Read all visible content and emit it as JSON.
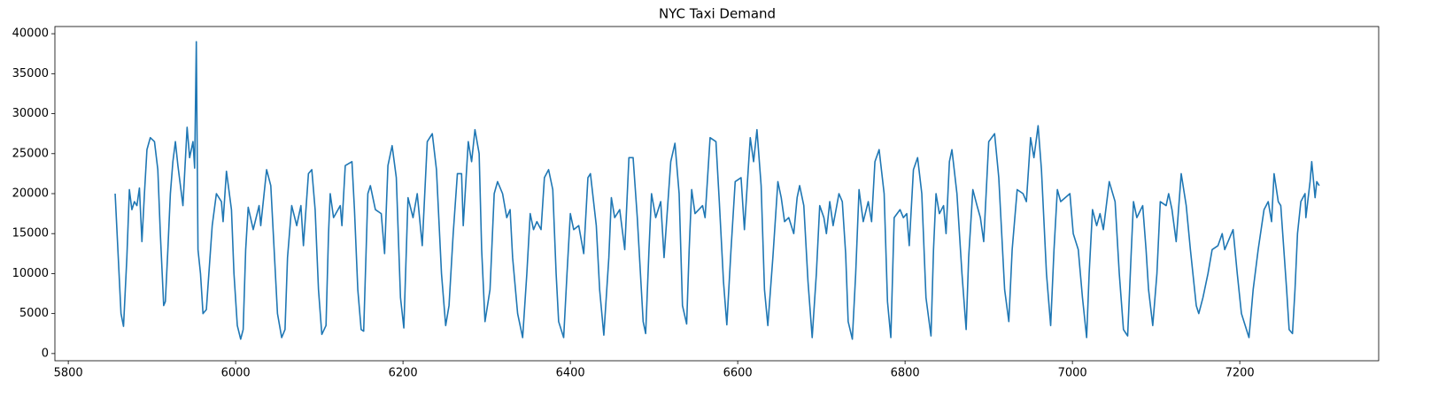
{
  "chart_data": {
    "type": "line",
    "title": "NYC Taxi Demand",
    "color": "#1f77b4",
    "xlim": [
      5784,
      7366
    ],
    "ylim": [
      -900,
      40900
    ],
    "xticks": [
      5800,
      6000,
      6200,
      6400,
      6600,
      6800,
      7000,
      7200
    ],
    "yticks": [
      0,
      5000,
      10000,
      15000,
      20000,
      25000,
      30000,
      35000,
      40000
    ],
    "grid": false,
    "x": [
      5856,
      5863,
      5866,
      5870,
      5873,
      5876,
      5879,
      5882,
      5885,
      5888,
      5891,
      5894,
      5898,
      5903,
      5907,
      5910,
      5914,
      5916,
      5919,
      5922,
      5925,
      5928,
      5931,
      5937,
      5942,
      5945,
      5949,
      5951,
      5953,
      5955,
      5958,
      5961,
      5965,
      5972,
      5977,
      5983,
      5985,
      5989,
      5995,
      5998,
      6002,
      6006,
      6009,
      6012,
      6015,
      6021,
      6028,
      6030,
      6037,
      6042,
      6045,
      6050,
      6055,
      6059,
      6062,
      6067,
      6073,
      6078,
      6081,
      6087,
      6091,
      6095,
      6099,
      6103,
      6108,
      6111,
      6113,
      6117,
      6125,
      6127,
      6131,
      6139,
      6142,
      6146,
      6150,
      6153,
      6158,
      6161,
      6167,
      6174,
      6178,
      6182,
      6186,
      6187,
      6192,
      6197,
      6201,
      6206,
      6212,
      6217,
      6223,
      6229,
      6235,
      6240,
      6246,
      6251,
      6255,
      6260,
      6265,
      6270,
      6272,
      6278,
      6282,
      6286,
      6291,
      6294,
      6298,
      6304,
      6309,
      6313,
      6319,
      6324,
      6328,
      6331,
      6337,
      6343,
      6348,
      6352,
      6356,
      6360,
      6365,
      6369,
      6374,
      6379,
      6383,
      6386,
      6392,
      6396,
      6400,
      6404,
      6410,
      6416,
      6421,
      6424,
      6431,
      6435,
      6440,
      6446,
      6449,
      6453,
      6459,
      6465,
      6470,
      6475,
      6480,
      6487,
      6490,
      6494,
      6497,
      6502,
      6508,
      6512,
      6520,
      6525,
      6530,
      6534,
      6539,
      6542,
      6545,
      6549,
      6558,
      6561,
      6567,
      6574,
      6578,
      6583,
      6587,
      6592,
      6597,
      6604,
      6608,
      6615,
      6619,
      6623,
      6628,
      6632,
      6636,
      6642,
      6648,
      6652,
      6656,
      6661,
      6667,
      6671,
      6674,
      6679,
      6684,
      6689,
      6694,
      6698,
      6703,
      6706,
      6710,
      6714,
      6721,
      6725,
      6729,
      6732,
      6737,
      6741,
      6745,
      6750,
      6756,
      6760,
      6764,
      6769,
      6775,
      6779,
      6783,
      6787,
      6794,
      6798,
      6802,
      6805,
      6810,
      6815,
      6820,
      6825,
      6831,
      6834,
      6837,
      6841,
      6846,
      6849,
      6853,
      6856,
      6862,
      6868,
      6873,
      6876,
      6881,
      6886,
      6890,
      6894,
      6900,
      6907,
      6912,
      6919,
      6924,
      6928,
      6934,
      6941,
      6945,
      6950,
      6954,
      6959,
      6963,
      6969,
      6974,
      6978,
      6982,
      6986,
      6997,
      7001,
      7007,
      7012,
      7017,
      7020,
      7024,
      7029,
      7033,
      7037,
      7044,
      7051,
      7056,
      7061,
      7066,
      7070,
      7073,
      7077,
      7084,
      7088,
      7091,
      7096,
      7101,
      7105,
      7112,
      7115,
      7119,
      7124,
      7130,
      7136,
      7141,
      7148,
      7151,
      7156,
      7162,
      7167,
      7174,
      7179,
      7182,
      7192,
      7197,
      7202,
      7211,
      7216,
      7222,
      7229,
      7234,
      7238,
      7241,
      7246,
      7249,
      7253,
      7256,
      7259,
      7263,
      7266,
      7269,
      7273,
      7278,
      7279,
      7284,
      7286,
      7290,
      7292,
      7295
    ],
    "values": [
      20000,
      5000,
      3400,
      12000,
      20500,
      18000,
      19000,
      18500,
      20700,
      14000,
      20000,
      25500,
      27000,
      26500,
      23000,
      15000,
      6000,
      6500,
      13000,
      20000,
      24000,
      26500,
      23500,
      18500,
      28300,
      24500,
      26500,
      23200,
      39000,
      13000,
      10000,
      5000,
      5500,
      16000,
      20000,
      19000,
      16500,
      22800,
      18000,
      10000,
      3500,
      1800,
      3000,
      13000,
      18300,
      15500,
      18500,
      16000,
      23000,
      21000,
      15000,
      5000,
      2000,
      3000,
      12000,
      18500,
      16000,
      18500,
      13500,
      22500,
      23000,
      18000,
      8000,
      2400,
      3500,
      15000,
      20000,
      17000,
      18500,
      16000,
      23500,
      24000,
      18000,
      8000,
      3000,
      2800,
      20000,
      21000,
      18000,
      17500,
      12500,
      23500,
      25500,
      26000,
      22000,
      7000,
      3200,
      19500,
      17000,
      20000,
      13500,
      26500,
      27500,
      23000,
      10000,
      3500,
      6000,
      15000,
      22500,
      22500,
      16000,
      26500,
      24000,
      28000,
      25000,
      13000,
      4000,
      8000,
      20000,
      21500,
      20000,
      17000,
      18000,
      12000,
      5000,
      2000,
      10000,
      17500,
      15500,
      16500,
      15500,
      22000,
      23000,
      20500,
      10000,
      4000,
      2000,
      10000,
      17500,
      15500,
      16000,
      12500,
      22000,
      22500,
      16000,
      8000,
      2300,
      12000,
      19500,
      17000,
      18000,
      13000,
      24500,
      24500,
      17000,
      4000,
      2500,
      13000,
      20000,
      17000,
      19000,
      12000,
      24000,
      26300,
      20000,
      6000,
      3700,
      13000,
      20500,
      17500,
      18500,
      17000,
      27000,
      26500,
      19000,
      9000,
      3600,
      13000,
      21500,
      22000,
      15500,
      27000,
      24000,
      28000,
      21000,
      8000,
      3500,
      12000,
      21500,
      19500,
      16500,
      17000,
      15000,
      19500,
      21000,
      18500,
      9000,
      2000,
      10000,
      18500,
      17000,
      15000,
      19000,
      16000,
      20000,
      19000,
      12500,
      4000,
      1800,
      10000,
      20500,
      16500,
      19000,
      16500,
      24000,
      25500,
      20000,
      6500,
      2000,
      17000,
      18000,
      17000,
      17500,
      13500,
      23000,
      24500,
      20000,
      7000,
      2200,
      13000,
      20000,
      17500,
      18500,
      15000,
      24000,
      25500,
      20000,
      10000,
      3000,
      12000,
      20500,
      18500,
      17000,
      14000,
      26500,
      27500,
      22000,
      8000,
      4000,
      13000,
      20500,
      20000,
      19000,
      27000,
      24500,
      28500,
      23000,
      10000,
      3500,
      13000,
      20500,
      19000,
      20000,
      15000,
      13000,
      7000,
      2000,
      10000,
      18000,
      16000,
      17500,
      15500,
      21500,
      19000,
      10000,
      3000,
      2200,
      12000,
      19000,
      17000,
      18500,
      13000,
      8000,
      3500,
      10000,
      19000,
      18500,
      20000,
      18000,
      14000,
      22500,
      18500,
      13000,
      6000,
      5000,
      7000,
      10000,
      13000,
      13500,
      15000,
      13000,
      15500,
      10000,
      5000,
      2000,
      8000,
      13000,
      18000,
      19000,
      16500,
      22500,
      19000,
      18500,
      12500,
      8000,
      3000,
      2500,
      8000,
      15000,
      19000,
      20000,
      17000,
      21500,
      24000,
      19500,
      21500,
      21000
    ]
  }
}
